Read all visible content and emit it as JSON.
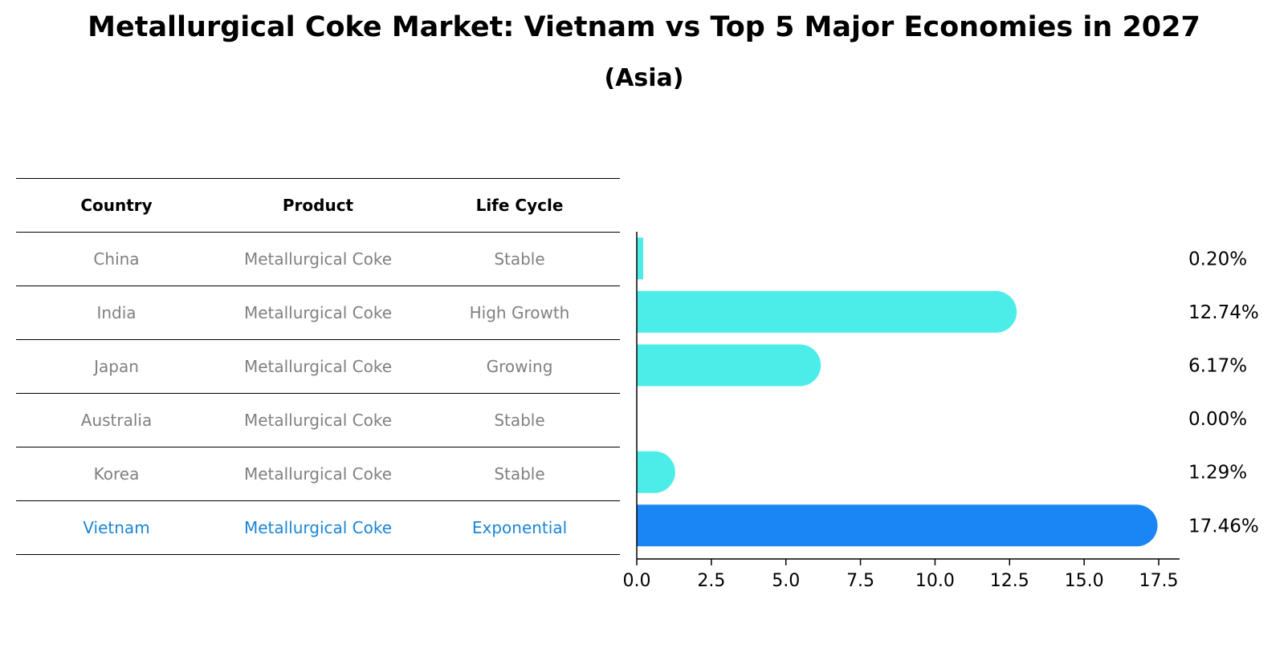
{
  "title": "Metallurgical Coke Market: Vietnam vs Top 5 Major Economies in 2027",
  "subtitle": "(Asia)",
  "table": {
    "headers": [
      "Country",
      "Product",
      "Life Cycle"
    ],
    "rows": [
      {
        "country": "China",
        "product": "Metallurgical Coke",
        "life_cycle": "Stable"
      },
      {
        "country": "India",
        "product": "Metallurgical Coke",
        "life_cycle": "High Growth"
      },
      {
        "country": "Japan",
        "product": "Metallurgical Coke",
        "life_cycle": "Growing"
      },
      {
        "country": "Australia",
        "product": "Metallurgical Coke",
        "life_cycle": "Stable"
      },
      {
        "country": "Korea",
        "product": "Metallurgical Coke",
        "life_cycle": "Stable"
      },
      {
        "country": "Vietnam",
        "product": "Metallurgical Coke",
        "life_cycle": "Exponential"
      }
    ]
  },
  "colors": {
    "bar": "#4cede9",
    "highlight_bar": "#1a85f5",
    "highlight_text": "#1a85d6",
    "row_text": "#808080"
  },
  "chart_data": {
    "type": "bar",
    "orientation": "horizontal",
    "categories": [
      "China",
      "India",
      "Japan",
      "Australia",
      "Korea",
      "Vietnam"
    ],
    "values": [
      0.2,
      12.74,
      6.17,
      0.0,
      1.29,
      17.46
    ],
    "value_labels": [
      "0.20%",
      "12.74%",
      "6.17%",
      "0.00%",
      "1.29%",
      "17.46%"
    ],
    "highlight": "Vietnam",
    "xlim": [
      0,
      18.2
    ],
    "xticks": [
      0.0,
      2.5,
      5.0,
      7.5,
      10.0,
      12.5,
      15.0,
      17.5
    ],
    "xtick_labels": [
      "0.0",
      "2.5",
      "5.0",
      "7.5",
      "10.0",
      "12.5",
      "15.0",
      "17.5"
    ],
    "grid": false,
    "xlabel": "",
    "ylabel": ""
  }
}
